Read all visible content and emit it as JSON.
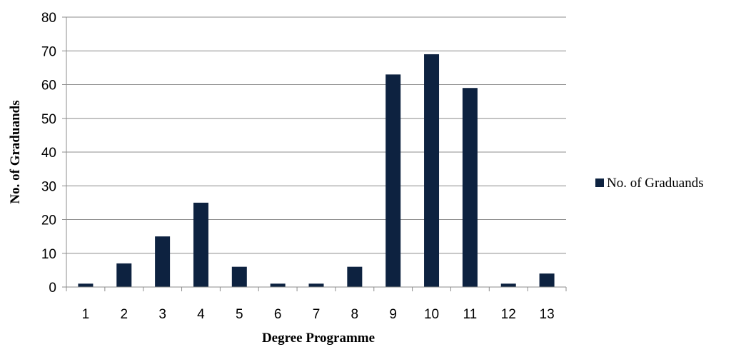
{
  "chart_data": {
    "type": "bar",
    "categories": [
      "1",
      "2",
      "3",
      "4",
      "5",
      "6",
      "7",
      "8",
      "9",
      "10",
      "11",
      "12",
      "13"
    ],
    "series": [
      {
        "name": "No. of Graduands",
        "values": [
          1,
          7,
          15,
          25,
          6,
          1,
          1,
          6,
          63,
          69,
          59,
          1,
          4
        ],
        "color": "#0d2240"
      }
    ],
    "xlabel": "Degree Programme",
    "ylabel": "No. of Graduands",
    "ylim": [
      0,
      80
    ],
    "yticks": [
      0,
      10,
      20,
      30,
      40,
      50,
      60,
      70,
      80
    ],
    "grid": true,
    "legend_position": "right"
  }
}
